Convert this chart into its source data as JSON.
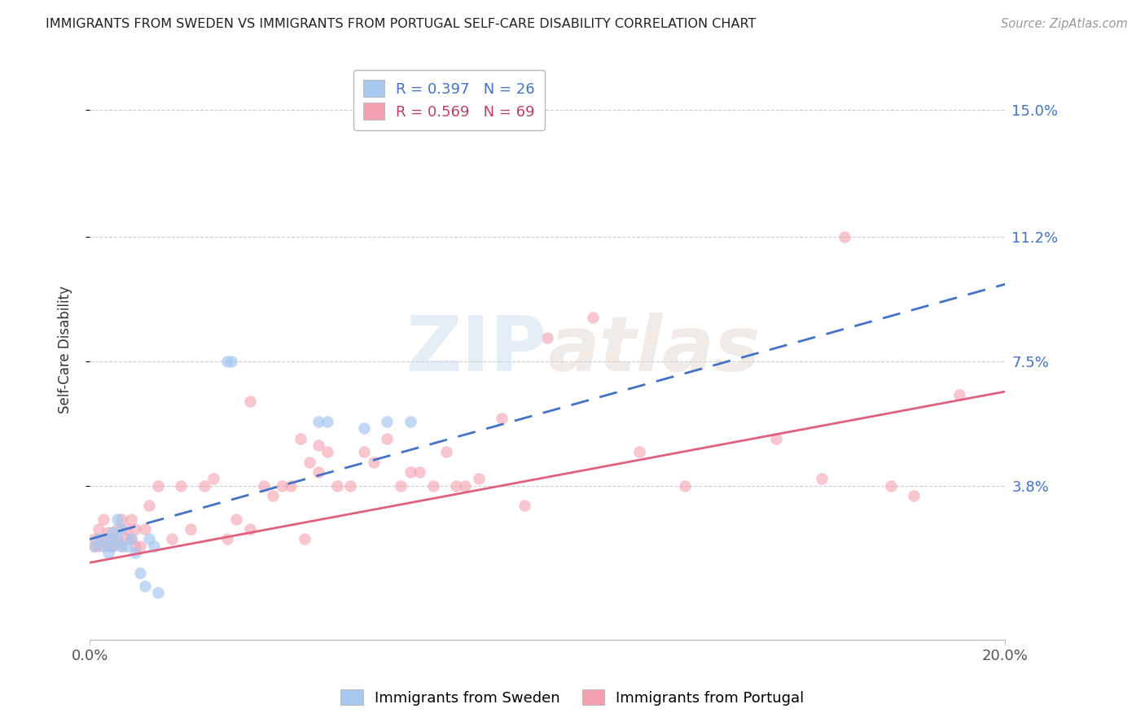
{
  "title": "IMMIGRANTS FROM SWEDEN VS IMMIGRANTS FROM PORTUGAL SELF-CARE DISABILITY CORRELATION CHART",
  "source": "Source: ZipAtlas.com",
  "ylabel": "Self-Care Disability",
  "ytick_labels": [
    "15.0%",
    "11.2%",
    "7.5%",
    "3.8%"
  ],
  "ytick_values": [
    0.15,
    0.112,
    0.075,
    0.038
  ],
  "xlim": [
    0.0,
    0.2
  ],
  "ylim": [
    -0.008,
    0.165
  ],
  "sweden_color": "#a8c8f0",
  "portugal_color": "#f4a0b0",
  "sweden_line_color": "#4472c4",
  "portugal_line_color": "#e06080",
  "sweden_line_start_y": 0.022,
  "sweden_line_end_y": 0.098,
  "portugal_line_start_y": 0.015,
  "portugal_line_end_y": 0.066,
  "sweden_points_x": [
    0.001,
    0.002,
    0.003,
    0.004,
    0.004,
    0.005,
    0.005,
    0.006,
    0.006,
    0.007,
    0.007,
    0.008,
    0.009,
    0.01,
    0.011,
    0.012,
    0.013,
    0.03,
    0.031,
    0.05,
    0.052,
    0.06,
    0.065,
    0.07,
    0.014,
    0.015
  ],
  "sweden_points_y": [
    0.02,
    0.022,
    0.02,
    0.022,
    0.018,
    0.024,
    0.02,
    0.028,
    0.022,
    0.02,
    0.025,
    0.02,
    0.022,
    0.018,
    0.012,
    0.008,
    0.022,
    0.075,
    0.075,
    0.057,
    0.057,
    0.055,
    0.057,
    0.057,
    0.02,
    0.006
  ],
  "portugal_points_x": [
    0.001,
    0.001,
    0.002,
    0.002,
    0.003,
    0.003,
    0.004,
    0.004,
    0.005,
    0.005,
    0.006,
    0.006,
    0.007,
    0.007,
    0.008,
    0.008,
    0.009,
    0.009,
    0.01,
    0.01,
    0.011,
    0.012,
    0.013,
    0.015,
    0.018,
    0.02,
    0.022,
    0.025,
    0.027,
    0.03,
    0.032,
    0.035,
    0.035,
    0.038,
    0.04,
    0.042,
    0.044,
    0.046,
    0.047,
    0.048,
    0.05,
    0.05,
    0.052,
    0.054,
    0.057,
    0.06,
    0.062,
    0.065,
    0.068,
    0.07,
    0.072,
    0.075,
    0.078,
    0.08,
    0.082,
    0.085,
    0.09,
    0.095,
    0.1,
    0.11,
    0.12,
    0.13,
    0.15,
    0.16,
    0.165,
    0.175,
    0.18,
    0.19
  ],
  "portugal_points_y": [
    0.02,
    0.022,
    0.02,
    0.025,
    0.022,
    0.028,
    0.02,
    0.024,
    0.022,
    0.02,
    0.022,
    0.025,
    0.02,
    0.028,
    0.022,
    0.025,
    0.022,
    0.028,
    0.02,
    0.025,
    0.02,
    0.025,
    0.032,
    0.038,
    0.022,
    0.038,
    0.025,
    0.038,
    0.04,
    0.022,
    0.028,
    0.063,
    0.025,
    0.038,
    0.035,
    0.038,
    0.038,
    0.052,
    0.022,
    0.045,
    0.042,
    0.05,
    0.048,
    0.038,
    0.038,
    0.048,
    0.045,
    0.052,
    0.038,
    0.042,
    0.042,
    0.038,
    0.048,
    0.038,
    0.038,
    0.04,
    0.058,
    0.032,
    0.082,
    0.088,
    0.048,
    0.038,
    0.052,
    0.04,
    0.112,
    0.038,
    0.035,
    0.065
  ]
}
